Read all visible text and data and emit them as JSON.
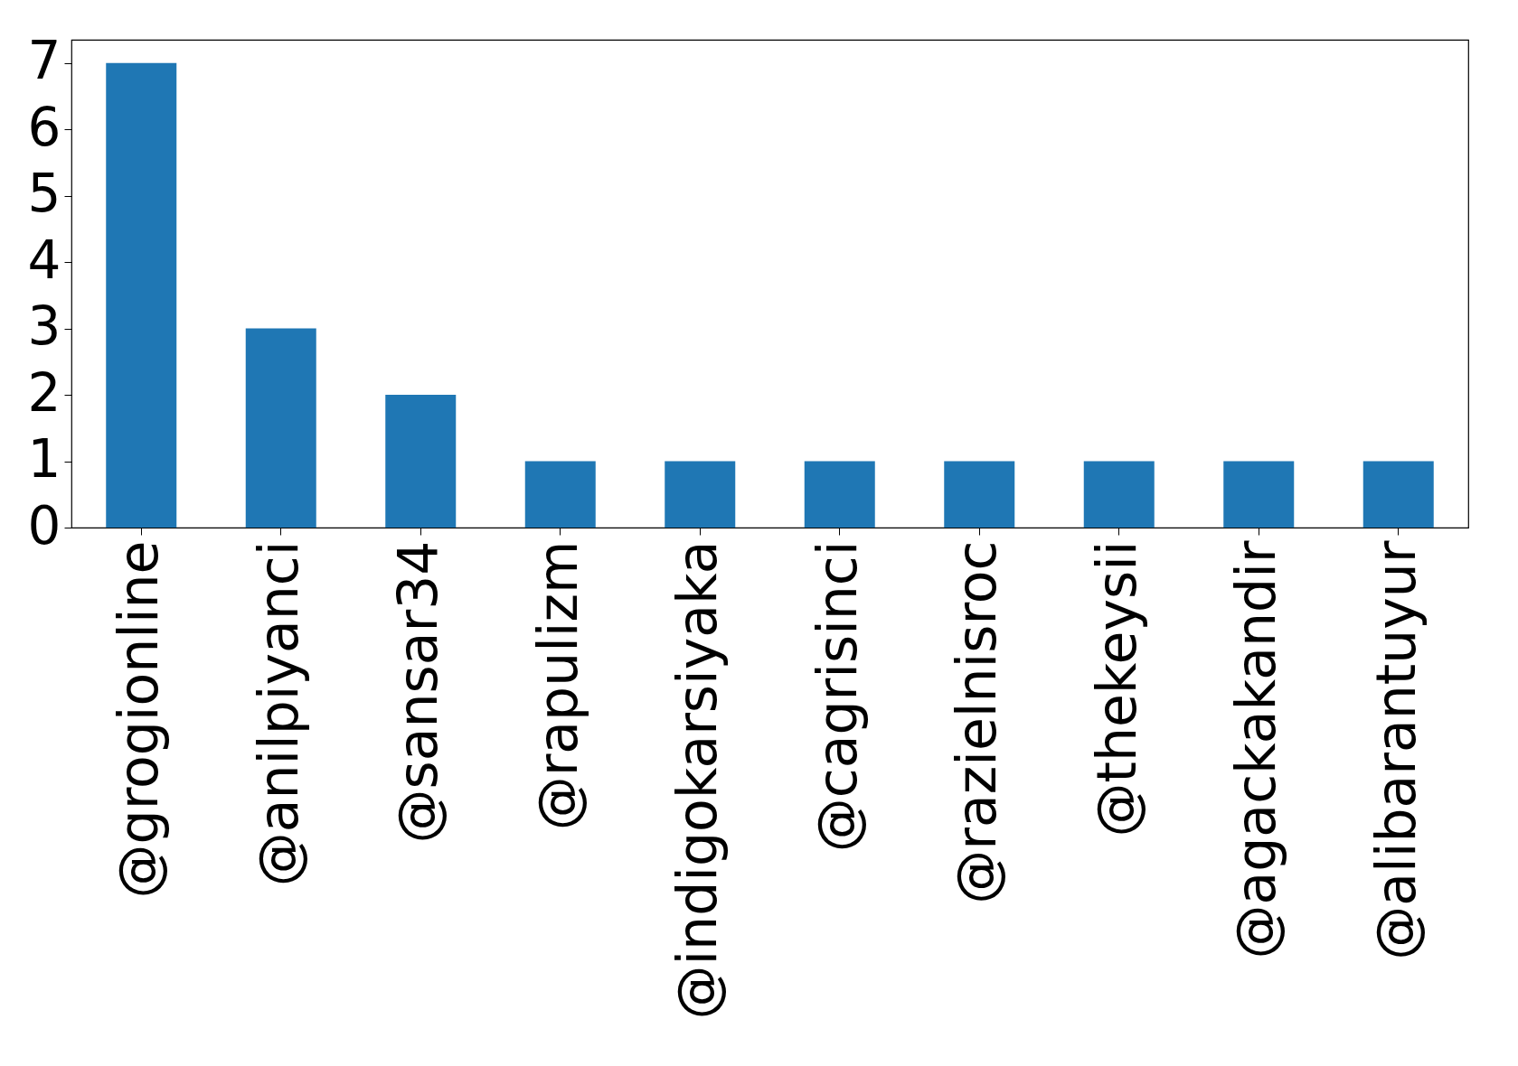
{
  "chart_data": {
    "type": "bar",
    "categories": [
      "@grogionline",
      "@anilpiyanci",
      "@sansar34",
      "@rapulizm",
      "@indigokarsiyaka",
      "@cagrisinci",
      "@razielnisroc",
      "@thekeysii",
      "@agackakandir",
      "@alibarantuyur"
    ],
    "values": [
      7,
      3,
      2,
      1,
      1,
      1,
      1,
      1,
      1,
      1
    ],
    "color": "#1f77b4",
    "ylim": [
      0,
      7.35
    ],
    "yticks": [
      0,
      1,
      2,
      3,
      4,
      5,
      6,
      7
    ],
    "grid": false
  }
}
